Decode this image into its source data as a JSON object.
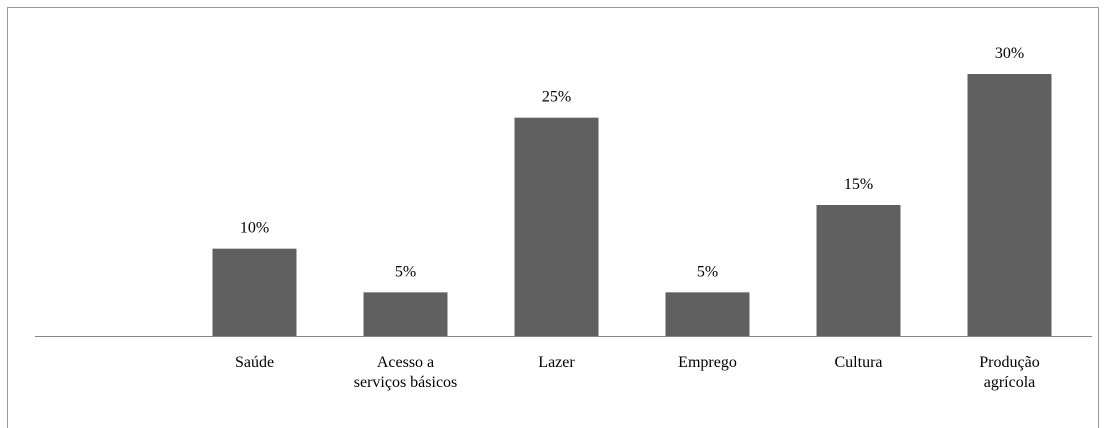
{
  "chart_data": {
    "type": "bar",
    "categories": [
      null,
      "Saúde",
      "Acesso a\nserviços básicos",
      "Lazer",
      "Emprego",
      "Cultura",
      "Produção\nagrícola"
    ],
    "values": [
      null,
      10,
      5,
      25,
      5,
      15,
      30
    ],
    "value_labels": [
      null,
      "10%",
      "5%",
      "25%",
      "5%",
      "15%",
      "30%"
    ],
    "color": "#606060"
  }
}
